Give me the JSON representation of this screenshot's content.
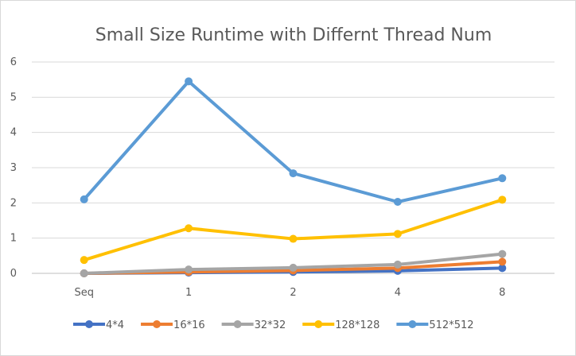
{
  "chart_data": {
    "type": "line",
    "title": "Small Size Runtime with Differnt Thread Num",
    "xlabel": "",
    "ylabel": "",
    "categories": [
      "Seq",
      "1",
      "2",
      "4",
      "8"
    ],
    "ylim": [
      0,
      6
    ],
    "yticks": [
      "0",
      "1",
      "2",
      "3",
      "4",
      "5",
      "6"
    ],
    "grid": true,
    "legend_position": "bottom",
    "series": [
      {
        "name": "4*4",
        "color": "#4472c4",
        "values": [
          0.0,
          0.02,
          0.04,
          0.07,
          0.15
        ]
      },
      {
        "name": "16*16",
        "color": "#ed7d31",
        "values": [
          0.0,
          0.04,
          0.08,
          0.15,
          0.33
        ]
      },
      {
        "name": "32*32",
        "color": "#a5a5a5",
        "values": [
          0.0,
          0.11,
          0.16,
          0.25,
          0.55
        ]
      },
      {
        "name": "128*128",
        "color": "#ffc000",
        "values": [
          0.38,
          1.28,
          0.98,
          1.12,
          2.09
        ]
      },
      {
        "name": "512*512",
        "color": "#5b9bd5",
        "values": [
          2.1,
          5.45,
          2.84,
          2.03,
          2.7
        ]
      }
    ]
  }
}
